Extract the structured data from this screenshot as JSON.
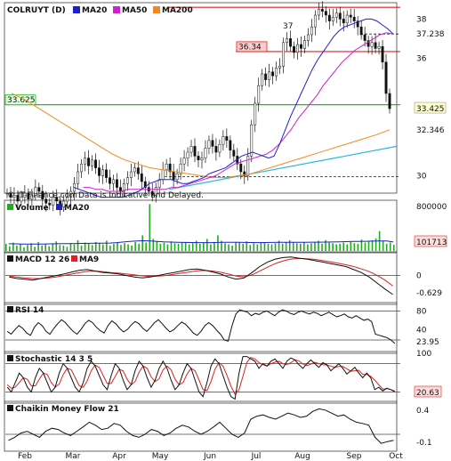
{
  "chart_data": [
    {
      "type": "line",
      "subtype": "candlestick",
      "panel": "price",
      "title": "COLRUYT (D)",
      "legend": [
        {
          "name": "MA20",
          "color": "#1f1fcf"
        },
        {
          "name": "MA50",
          "color": "#d21fd2"
        },
        {
          "name": "MA200",
          "color": "#f08a1e"
        }
      ],
      "ylim": [
        29.2,
        38.7
      ],
      "yticks": [
        "38",
        "36",
        "30"
      ],
      "xticks": [
        "Feb",
        "Mar",
        "Apr",
        "May",
        "Jun",
        "Jul",
        "Aug",
        "Sep",
        "Oct"
      ],
      "watermark": "© IT-Finance.com",
      "disclaimer": "Data is Indicative and Delayed.",
      "hlines": [
        {
          "value": 38.6,
          "color": "#e02020"
        },
        {
          "value": 36.34,
          "color": "#e02020",
          "label": "36.34"
        },
        {
          "value": 33.625,
          "color": "#22bb22",
          "label": "33.625"
        },
        {
          "value": 37.238,
          "color": "#222222",
          "style": "dashed"
        },
        {
          "value": 29.95,
          "color": "#222222",
          "style": "dashed"
        }
      ],
      "price_labels": [
        {
          "text": "37.238",
          "color": "#d21fd2"
        },
        {
          "text": "33.425",
          "color": "#111111",
          "bg": "#ffffcc"
        },
        {
          "text": "32.346",
          "color": "#f08a1e"
        }
      ],
      "annotation": "37",
      "close": [
        29.1,
        28.9,
        29.0,
        28.7,
        28.9,
        29.1,
        28.8,
        29.0,
        29.4,
        29.2,
        28.8,
        28.6,
        28.5,
        28.9,
        28.7,
        28.4,
        28.7,
        28.9,
        29.2,
        29.6,
        30.2,
        30.6,
        30.9,
        30.5,
        30.8,
        30.4,
        30.0,
        30.3,
        29.9,
        29.6,
        29.8,
        29.4,
        29.2,
        29.6,
        29.9,
        30.2,
        30.4,
        30.1,
        29.7,
        29.4,
        29.2,
        29.0,
        29.4,
        29.8,
        30.3,
        30.6,
        30.2,
        29.8,
        30.1,
        30.6,
        30.9,
        31.2,
        31.5,
        31.0,
        30.8,
        30.9,
        31.4,
        31.8,
        31.5,
        31.2,
        31.6,
        32.0,
        31.8,
        31.3,
        31.0,
        30.6,
        30.2,
        30.0,
        31.0,
        32.6,
        33.7,
        34.6,
        35.2,
        34.9,
        35.3,
        35.1,
        35.5,
        35.6,
        36.8,
        37.0,
        36.6,
        36.3,
        36.7,
        36.5,
        36.9,
        37.2,
        37.6,
        38.2,
        38.5,
        38.4,
        38.2,
        37.9,
        38.1,
        38.3,
        38.0,
        37.8,
        38.2,
        38.1,
        37.9,
        37.6,
        37.2,
        36.9,
        36.6,
        36.8,
        36.5,
        36.6,
        35.8,
        34.2,
        33.425
      ],
      "ma20": [
        29.4,
        29.3,
        29.2,
        29.1,
        29.0,
        28.9,
        28.9,
        28.9,
        28.9,
        28.9,
        29.0,
        29.1,
        29.2,
        29.4,
        29.6,
        29.7,
        29.8,
        29.8,
        29.8,
        29.7,
        29.6,
        29.6,
        29.7,
        29.8,
        29.9,
        30.1,
        30.2,
        30.3,
        30.4,
        30.6,
        30.8,
        31.0,
        31.1,
        31.2,
        31.1,
        31.0,
        30.9,
        31.0,
        31.6,
        32.3,
        33.0,
        33.6,
        34.2,
        34.8,
        35.4,
        35.9,
        36.3,
        36.7,
        37.1,
        37.4,
        37.6,
        37.7,
        37.8,
        37.9,
        38.0,
        38.0,
        37.9,
        37.7,
        37.5,
        37.238
      ],
      "ma50": [
        29.4,
        29.4,
        29.3,
        29.3,
        29.2,
        29.2,
        29.2,
        29.3,
        29.3,
        29.3,
        29.3,
        29.3,
        29.3,
        29.3,
        29.4,
        29.4,
        29.5,
        29.6,
        29.7,
        29.8,
        29.9,
        30.0,
        30.2,
        30.4,
        30.6,
        30.7,
        30.8,
        30.9,
        31.0,
        31.1,
        31.3,
        31.6,
        32.0,
        32.4,
        32.9,
        33.3,
        33.7,
        34.1,
        34.6,
        35.0,
        35.4,
        35.8,
        36.1,
        36.4,
        36.6,
        36.8,
        37.0,
        37.2,
        37.3,
        37.238
      ],
      "ma200": [
        34.2,
        33.9,
        33.5,
        33.1,
        32.7,
        32.3,
        31.9,
        31.5,
        31.1,
        30.8,
        30.6,
        30.4,
        30.3,
        30.2,
        30.1,
        30.0,
        29.9,
        29.9,
        30.0,
        30.1,
        30.3,
        30.5,
        30.7,
        30.9,
        31.1,
        31.3,
        31.5,
        31.7,
        31.9,
        32.1,
        32.346
      ],
      "trendline": [
        29.3,
        31.5
      ]
    },
    {
      "type": "bar",
      "panel": "volume",
      "legend": [
        {
          "name": "Volume",
          "color": "#22aa22"
        },
        {
          "name": "MA20",
          "color": "#1f1fcf"
        }
      ],
      "ylim": [
        0,
        800000
      ],
      "yticks": [
        "800000"
      ],
      "last_label": "101713",
      "values": [
        120,
        80,
        140,
        90,
        110,
        60,
        100,
        130,
        70,
        150,
        90,
        110,
        80,
        120,
        160,
        100,
        90,
        70,
        130,
        110,
        180,
        90,
        140,
        120,
        100,
        150,
        130,
        110,
        170,
        90,
        120,
        140,
        100,
        130,
        110,
        90,
        150,
        120,
        260,
        140,
        780,
        200,
        160,
        120,
        140,
        110,
        160,
        130,
        120,
        140,
        150,
        110,
        130,
        170,
        120,
        140,
        200,
        110,
        150,
        260,
        170,
        130,
        110,
        90,
        150,
        140,
        120,
        160,
        100,
        130,
        110,
        150,
        140,
        120,
        110,
        130,
        170,
        120,
        140,
        180,
        150,
        130,
        120,
        140,
        110,
        130,
        150,
        170,
        120,
        180,
        140,
        130,
        110,
        120,
        140,
        110,
        150,
        130,
        120,
        190,
        140,
        160,
        180,
        210,
        330,
        170,
        120,
        140,
        101.7
      ],
      "ma20": [
        120,
        118,
        116,
        115,
        115,
        116,
        118,
        120,
        121,
        122,
        124,
        126,
        128,
        129,
        130,
        132,
        140,
        150,
        160,
        168,
        170,
        168,
        160,
        152,
        148,
        145,
        142,
        141,
        140,
        139,
        140,
        142,
        143,
        144,
        143,
        142,
        141,
        140,
        141,
        142,
        143,
        144,
        144,
        145,
        145,
        146,
        147,
        148,
        150,
        152,
        155,
        158,
        160,
        162,
        164,
        166,
        168,
        150
      ]
    },
    {
      "type": "line",
      "panel": "macd",
      "legend": [
        {
          "name": "MACD 12 26",
          "color": "#111111"
        },
        {
          "name": "MA9",
          "color": "#e02020"
        }
      ],
      "ylim": [
        -0.9,
        0.7
      ],
      "yticks": [
        "0"
      ],
      "last_label": "-0.629",
      "macd": [
        -0.05,
        -0.1,
        -0.12,
        -0.15,
        -0.1,
        -0.05,
        0.0,
        0.05,
        0.12,
        0.18,
        0.2,
        0.15,
        0.1,
        0.08,
        0.05,
        0.0,
        -0.05,
        -0.08,
        -0.05,
        0.0,
        0.05,
        0.1,
        0.15,
        0.2,
        0.22,
        0.18,
        0.12,
        0.05,
        -0.05,
        -0.12,
        -0.08,
        0.1,
        0.3,
        0.45,
        0.55,
        0.6,
        0.62,
        0.58,
        0.55,
        0.5,
        0.45,
        0.4,
        0.35,
        0.3,
        0.2,
        0.1,
        -0.05,
        -0.25,
        -0.45,
        -0.629
      ],
      "signal": [
        -0.02,
        -0.05,
        -0.08,
        -0.1,
        -0.1,
        -0.08,
        -0.05,
        0.0,
        0.05,
        0.1,
        0.14,
        0.15,
        0.13,
        0.1,
        0.08,
        0.05,
        0.02,
        -0.01,
        -0.03,
        -0.02,
        0.0,
        0.04,
        0.08,
        0.12,
        0.16,
        0.17,
        0.15,
        0.11,
        0.05,
        -0.02,
        -0.04,
        0.02,
        0.15,
        0.28,
        0.4,
        0.49,
        0.55,
        0.57,
        0.56,
        0.54,
        0.5,
        0.46,
        0.41,
        0.36,
        0.3,
        0.22,
        0.13,
        0.0,
        -0.15,
        -0.35
      ]
    },
    {
      "type": "line",
      "panel": "rsi",
      "legend": [
        {
          "name": "RSI 14",
          "color": "#111111"
        }
      ],
      "ylim": [
        10,
        90
      ],
      "yticks": [
        "80",
        "40"
      ],
      "hlines": [
        80,
        30
      ],
      "last_label": "23.95",
      "values": [
        45,
        40,
        48,
        55,
        50,
        42,
        38,
        52,
        60,
        55,
        45,
        40,
        50,
        58,
        65,
        60,
        52,
        45,
        40,
        48,
        58,
        64,
        60,
        52,
        46,
        42,
        55,
        63,
        58,
        50,
        44,
        48,
        56,
        62,
        58,
        50,
        45,
        52,
        60,
        65,
        58,
        50,
        44,
        48,
        55,
        61,
        57,
        50,
        42,
        38,
        45,
        55,
        60,
        55,
        47,
        40,
        30,
        28,
        55,
        75,
        82,
        80,
        78,
        72,
        76,
        74,
        78,
        80,
        76,
        72,
        78,
        82,
        80,
        76,
        74,
        78,
        80,
        77,
        75,
        78,
        76,
        72,
        75,
        78,
        74,
        70,
        72,
        75,
        70,
        68,
        72,
        68,
        64,
        66,
        62,
        40,
        38,
        36,
        34,
        30,
        23.95
      ]
    },
    {
      "type": "line",
      "panel": "stochastic",
      "legend": [
        {
          "name": "Stochastic 14 3 5",
          "color": "#111111"
        }
      ],
      "ylim": [
        0,
        100
      ],
      "yticks": [
        "100"
      ],
      "hlines": [
        80,
        20
      ],
      "last_label": "20.63",
      "k": [
        30,
        20,
        40,
        60,
        50,
        30,
        20,
        50,
        70,
        60,
        40,
        20,
        30,
        60,
        80,
        70,
        50,
        30,
        20,
        40,
        70,
        85,
        75,
        55,
        35,
        25,
        55,
        80,
        70,
        45,
        25,
        35,
        65,
        85,
        75,
        50,
        30,
        45,
        70,
        85,
        70,
        45,
        25,
        35,
        60,
        80,
        70,
        45,
        20,
        10,
        40,
        75,
        90,
        80,
        55,
        30,
        10,
        5,
        60,
        95,
        95,
        90,
        85,
        70,
        80,
        75,
        85,
        90,
        80,
        70,
        85,
        92,
        88,
        78,
        70,
        80,
        88,
        80,
        72,
        82,
        78,
        65,
        72,
        80,
        70,
        58,
        65,
        72,
        60,
        50,
        60,
        50,
        25,
        30,
        22,
        28,
        25,
        20.63
      ],
      "d": [
        35,
        28,
        30,
        40,
        50,
        47,
        33,
        33,
        47,
        60,
        57,
        40,
        30,
        37,
        57,
        70,
        67,
        50,
        33,
        30,
        43,
        65,
        77,
        72,
        55,
        38,
        38,
        53,
        68,
        65,
        47,
        35,
        42,
        62,
        75,
        70,
        52,
        42,
        48,
        67,
        75,
        67,
        47,
        35,
        40,
        58,
        70,
        65,
        45,
        25,
        23,
        42,
        68,
        82,
        75,
        55,
        32,
        15,
        25,
        53,
        83,
        93,
        90,
        82,
        78,
        75,
        80,
        83,
        85,
        80,
        78,
        82,
        88,
        86,
        79,
        76,
        79,
        83,
        80,
        78,
        77,
        75,
        72,
        74,
        74,
        69,
        64,
        65,
        66,
        57,
        57,
        53,
        45,
        35,
        26,
        27,
        25,
        22
      ]
    },
    {
      "type": "line",
      "panel": "cmf",
      "legend": [
        {
          "name": "Chaikin Money Flow 21",
          "color": "#111111"
        }
      ],
      "ylim": [
        -0.25,
        0.5
      ],
      "yticks": [
        "0.4",
        "-0.1"
      ],
      "hlines": [
        0
      ],
      "last_label": "-0.1",
      "values": [
        -0.1,
        -0.05,
        0.02,
        0.05,
        0.0,
        -0.05,
        0.05,
        0.1,
        0.08,
        0.02,
        -0.02,
        0.05,
        0.12,
        0.2,
        0.15,
        0.08,
        0.1,
        0.18,
        0.15,
        0.05,
        -0.02,
        -0.05,
        0.0,
        0.08,
        0.05,
        -0.02,
        0.02,
        0.1,
        0.15,
        0.12,
        0.05,
        0.0,
        0.05,
        0.12,
        0.2,
        0.1,
        0.0,
        -0.05,
        0.02,
        0.25,
        0.3,
        0.32,
        0.28,
        0.25,
        0.3,
        0.35,
        0.32,
        0.28,
        0.3,
        0.38,
        0.42,
        0.4,
        0.35,
        0.3,
        0.32,
        0.25,
        0.2,
        0.18,
        0.15,
        -0.05,
        -0.15,
        -0.12,
        -0.1
      ]
    }
  ]
}
